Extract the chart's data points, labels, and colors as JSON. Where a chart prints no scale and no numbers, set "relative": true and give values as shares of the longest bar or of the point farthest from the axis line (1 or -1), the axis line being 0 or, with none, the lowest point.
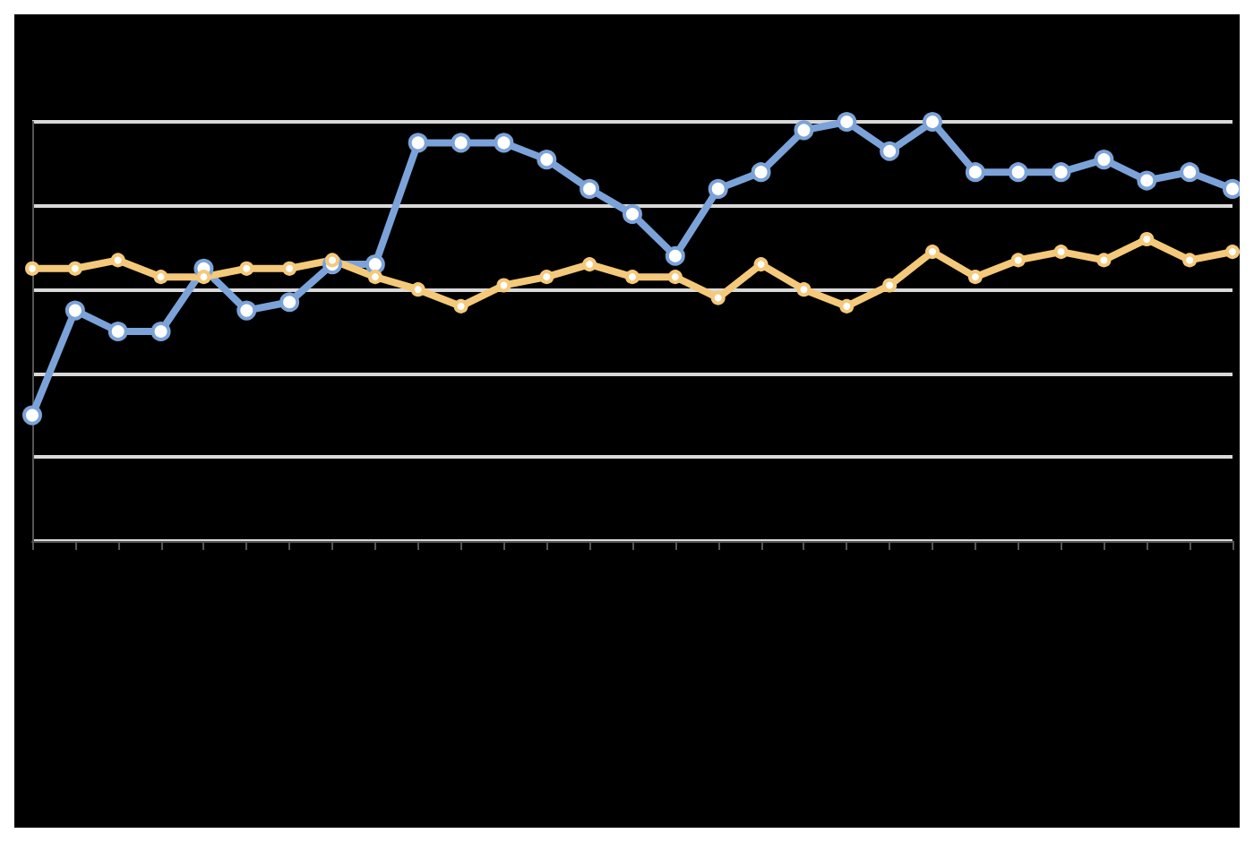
{
  "chart_data": {
    "type": "line",
    "relative": true,
    "grid": "y",
    "marker": "circle",
    "categories": [
      null,
      null,
      null,
      null,
      null,
      null,
      null,
      null,
      null,
      null,
      null,
      null,
      null,
      null,
      null,
      null,
      null,
      null,
      null,
      null,
      null,
      null,
      null,
      null,
      null,
      null,
      null,
      null,
      null
    ],
    "series": [
      {
        "color": "#7ba3d9",
        "values": [
          0.3,
          0.55,
          0.5,
          0.5,
          0.65,
          0.55,
          0.57,
          0.66,
          0.66,
          0.95,
          0.95,
          0.95,
          0.91,
          0.84,
          0.78,
          0.68,
          0.84,
          0.88,
          0.98,
          1,
          0.93,
          1,
          0.88,
          0.88,
          0.88,
          0.91,
          0.86,
          0.88,
          0.84
        ]
      },
      {
        "color": "#f5c97a",
        "values": [
          0.65,
          0.65,
          0.67,
          0.63,
          0.63,
          0.65,
          0.65,
          0.67,
          0.63,
          0.6,
          0.56,
          0.61,
          0.63,
          0.66,
          0.63,
          0.63,
          0.58,
          0.66,
          0.6,
          0.56,
          0.61,
          0.69,
          0.63,
          0.67,
          0.69,
          0.67,
          0.72,
          0.67,
          0.69
        ]
      }
    ]
  }
}
